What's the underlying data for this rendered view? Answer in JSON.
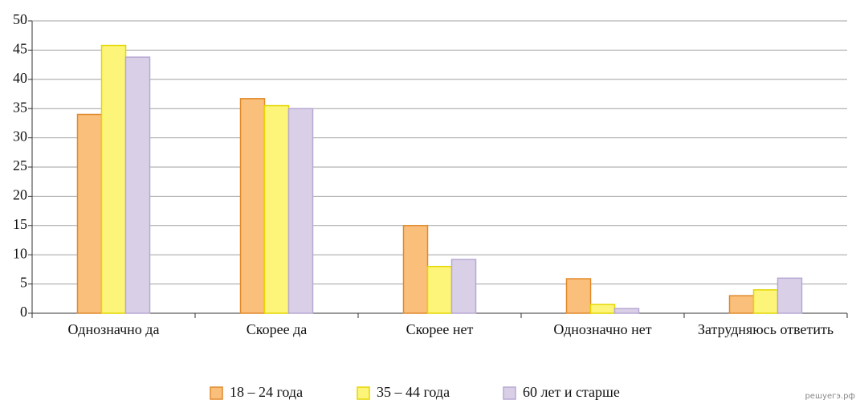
{
  "chart_data": {
    "type": "bar",
    "categories": [
      "Однозначно да",
      "Скорее да",
      "Скорее нет",
      "Однозначно нет",
      "Затрудняюсь ответить"
    ],
    "series": [
      {
        "name": "18 – 24 года",
        "color": "#fbbf7c",
        "values": [
          34,
          36.7,
          15,
          5.9,
          3
        ]
      },
      {
        "name": "35 – 44 года",
        "color": "#fdf57a",
        "values": [
          45.8,
          35.5,
          8,
          1.5,
          4
        ]
      },
      {
        "name": "60 лет и старше",
        "color": "#d9d0e8",
        "values": [
          43.8,
          35,
          9.2,
          0.8,
          6
        ]
      }
    ],
    "ylim": [
      0,
      50
    ],
    "yticks": [
      0,
      5,
      10,
      15,
      20,
      25,
      30,
      35,
      40,
      45,
      50
    ],
    "grid": true,
    "legend": "bottom"
  },
  "watermark": "решуегэ.рф"
}
